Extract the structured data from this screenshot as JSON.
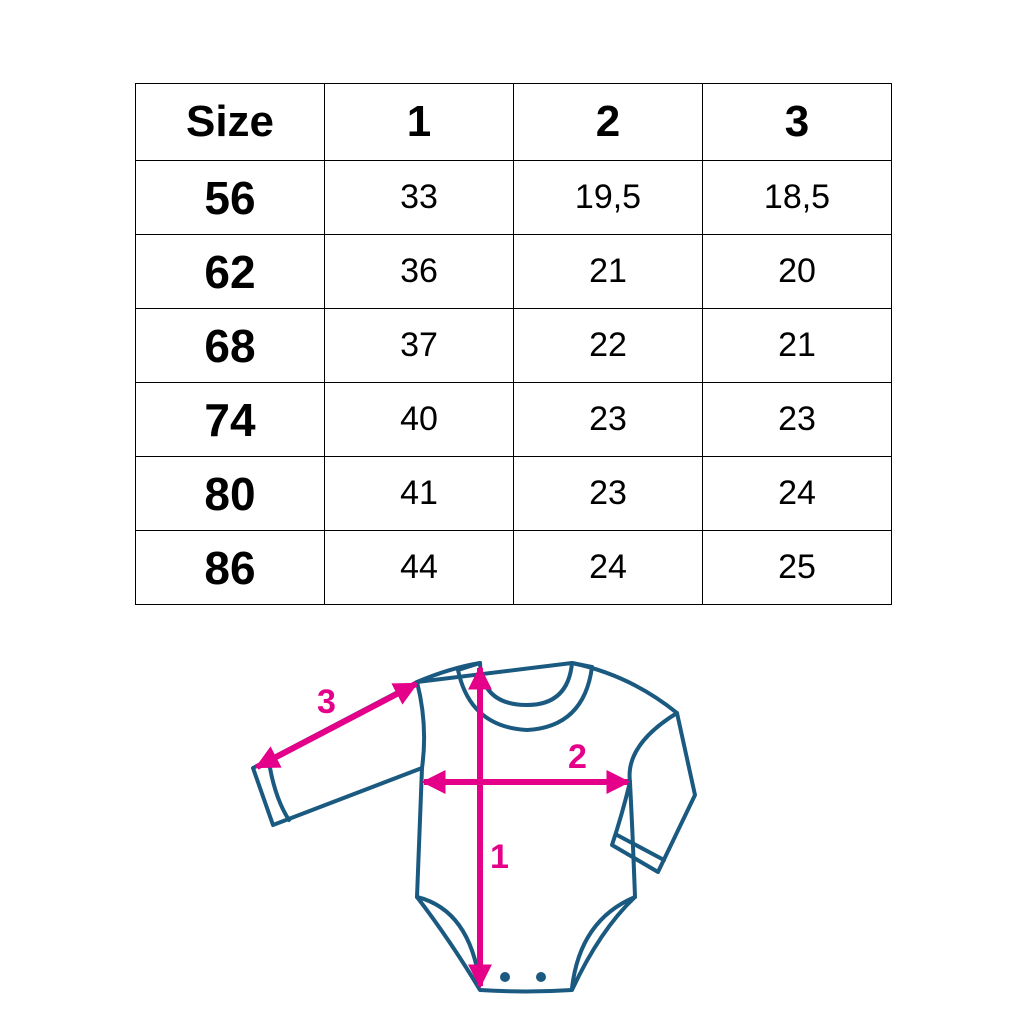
{
  "table": {
    "headers": [
      "Size",
      "1",
      "2",
      "3"
    ],
    "rows": [
      [
        "56",
        "33",
        "19,5",
        "18,5"
      ],
      [
        "62",
        "36",
        "21",
        "20"
      ],
      [
        "68",
        "37",
        "22",
        "21"
      ],
      [
        "74",
        "40",
        "23",
        "23"
      ],
      [
        "80",
        "41",
        "23",
        "24"
      ],
      [
        "86",
        "44",
        "24",
        "25"
      ]
    ]
  },
  "diagram": {
    "labels": {
      "length": "1",
      "width": "2",
      "sleeve": "3"
    },
    "colors": {
      "outline": "#1b5a80",
      "arrows": "#e5008a"
    }
  }
}
